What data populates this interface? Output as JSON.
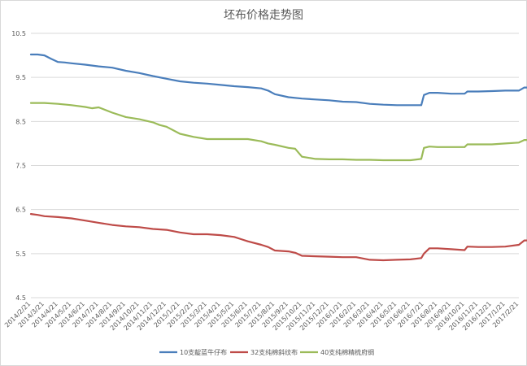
{
  "chart_data": {
    "type": "line",
    "title": "坯布价格走势图",
    "xlabel": "",
    "ylabel": "",
    "ylim": [
      4.5,
      10.5
    ],
    "yticks": [
      "10.5",
      "9.5",
      "8.5",
      "7.5",
      "6.5",
      "5.5",
      "4.5"
    ],
    "grid": true,
    "legend_position": "bottom",
    "x_labels": [
      "2014/2/21",
      "2014/3/21",
      "2014/4/21",
      "2014/5/21",
      "2014/6/21",
      "2014/7/21",
      "2014/8/21",
      "2014/9/21",
      "2014/10/21",
      "2014/11/21",
      "2014/12/21",
      "2015/1/21",
      "2015/2/21",
      "2015/3/21",
      "2015/4/21",
      "2015/5/21",
      "2015/6/21",
      "2015/7/21",
      "2015/8/21",
      "2015/9/21",
      "2015/10/21",
      "2015/11/21",
      "2015/12/21",
      "2016/1/21",
      "2016/2/21",
      "2016/3/21",
      "2016/4/21",
      "2016/5/21",
      "2016/6/21",
      "2016/7/21",
      "2016/8/21",
      "2016/9/21",
      "2016/10/21",
      "2016/11/21",
      "2016/12/21",
      "2017/1/21",
      "2017/2/21"
    ],
    "series": [
      {
        "name": "10支靛蓝牛仔布",
        "color": "#4a7ebb",
        "x": [
          0,
          0.5,
          1,
          1.5,
          2,
          2.5,
          3,
          4,
          5,
          6,
          7,
          8,
          9,
          10,
          11,
          12,
          13,
          14,
          15,
          16,
          17,
          17.5,
          18,
          19,
          20,
          21,
          22,
          23,
          24,
          25,
          26,
          27,
          27.5,
          28,
          28.8,
          29,
          29.4,
          30,
          31,
          32,
          32.2,
          33,
          34,
          35,
          36,
          36.4,
          37
        ],
        "y": [
          10.02,
          10.02,
          10.0,
          9.92,
          9.85,
          9.84,
          9.82,
          9.79,
          9.75,
          9.72,
          9.65,
          9.6,
          9.53,
          9.47,
          9.41,
          9.38,
          9.36,
          9.33,
          9.3,
          9.28,
          9.25,
          9.2,
          9.12,
          9.05,
          9.02,
          9.0,
          8.98,
          8.95,
          8.94,
          8.9,
          8.88,
          8.87,
          8.87,
          8.87,
          8.87,
          9.1,
          9.15,
          9.15,
          9.13,
          9.13,
          9.18,
          9.18,
          9.19,
          9.2,
          9.2,
          9.27,
          9.27
        ]
      },
      {
        "name": "32支纯棉斜纹布",
        "color": "#be4b48",
        "x": [
          0,
          0.5,
          1,
          2,
          3,
          4,
          5,
          6,
          7,
          8,
          9,
          10,
          11,
          12,
          13,
          14,
          15,
          15.5,
          16,
          17,
          17.5,
          18,
          19,
          19.5,
          20,
          21,
          22,
          23,
          24,
          25,
          26,
          27,
          28,
          28.8,
          29,
          29.4,
          30,
          31,
          32,
          32.2,
          33,
          34,
          35,
          36,
          36.4,
          37
        ],
        "y": [
          6.4,
          6.38,
          6.35,
          6.33,
          6.3,
          6.25,
          6.2,
          6.15,
          6.12,
          6.1,
          6.06,
          6.04,
          5.98,
          5.94,
          5.94,
          5.92,
          5.88,
          5.83,
          5.78,
          5.7,
          5.65,
          5.57,
          5.55,
          5.52,
          5.45,
          5.44,
          5.43,
          5.42,
          5.42,
          5.36,
          5.35,
          5.36,
          5.37,
          5.4,
          5.5,
          5.62,
          5.62,
          5.6,
          5.58,
          5.66,
          5.65,
          5.65,
          5.66,
          5.7,
          5.8,
          5.8
        ]
      },
      {
        "name": "40支纯棉精梳府绸",
        "color": "#9bbb59",
        "x": [
          0,
          0.5,
          1,
          2,
          3,
          4,
          4.5,
          5,
          6,
          7,
          8,
          9,
          9.5,
          10,
          11,
          12,
          13,
          14,
          15,
          16,
          17,
          17.5,
          18,
          19,
          19.5,
          20,
          21,
          22,
          23,
          24,
          25,
          26,
          27,
          28,
          28.8,
          29,
          29.4,
          30,
          31,
          32,
          32.2,
          33,
          34,
          35,
          36,
          36.4,
          37
        ],
        "y": [
          8.92,
          8.92,
          8.92,
          8.9,
          8.87,
          8.83,
          8.8,
          8.82,
          8.7,
          8.6,
          8.55,
          8.48,
          8.42,
          8.38,
          8.22,
          8.15,
          8.1,
          8.1,
          8.1,
          8.1,
          8.05,
          8.0,
          7.97,
          7.9,
          7.88,
          7.7,
          7.65,
          7.64,
          7.64,
          7.63,
          7.63,
          7.62,
          7.62,
          7.62,
          7.65,
          7.9,
          7.93,
          7.92,
          7.92,
          7.92,
          7.98,
          7.98,
          7.98,
          8.0,
          8.02,
          8.08,
          8.08
        ]
      }
    ]
  }
}
